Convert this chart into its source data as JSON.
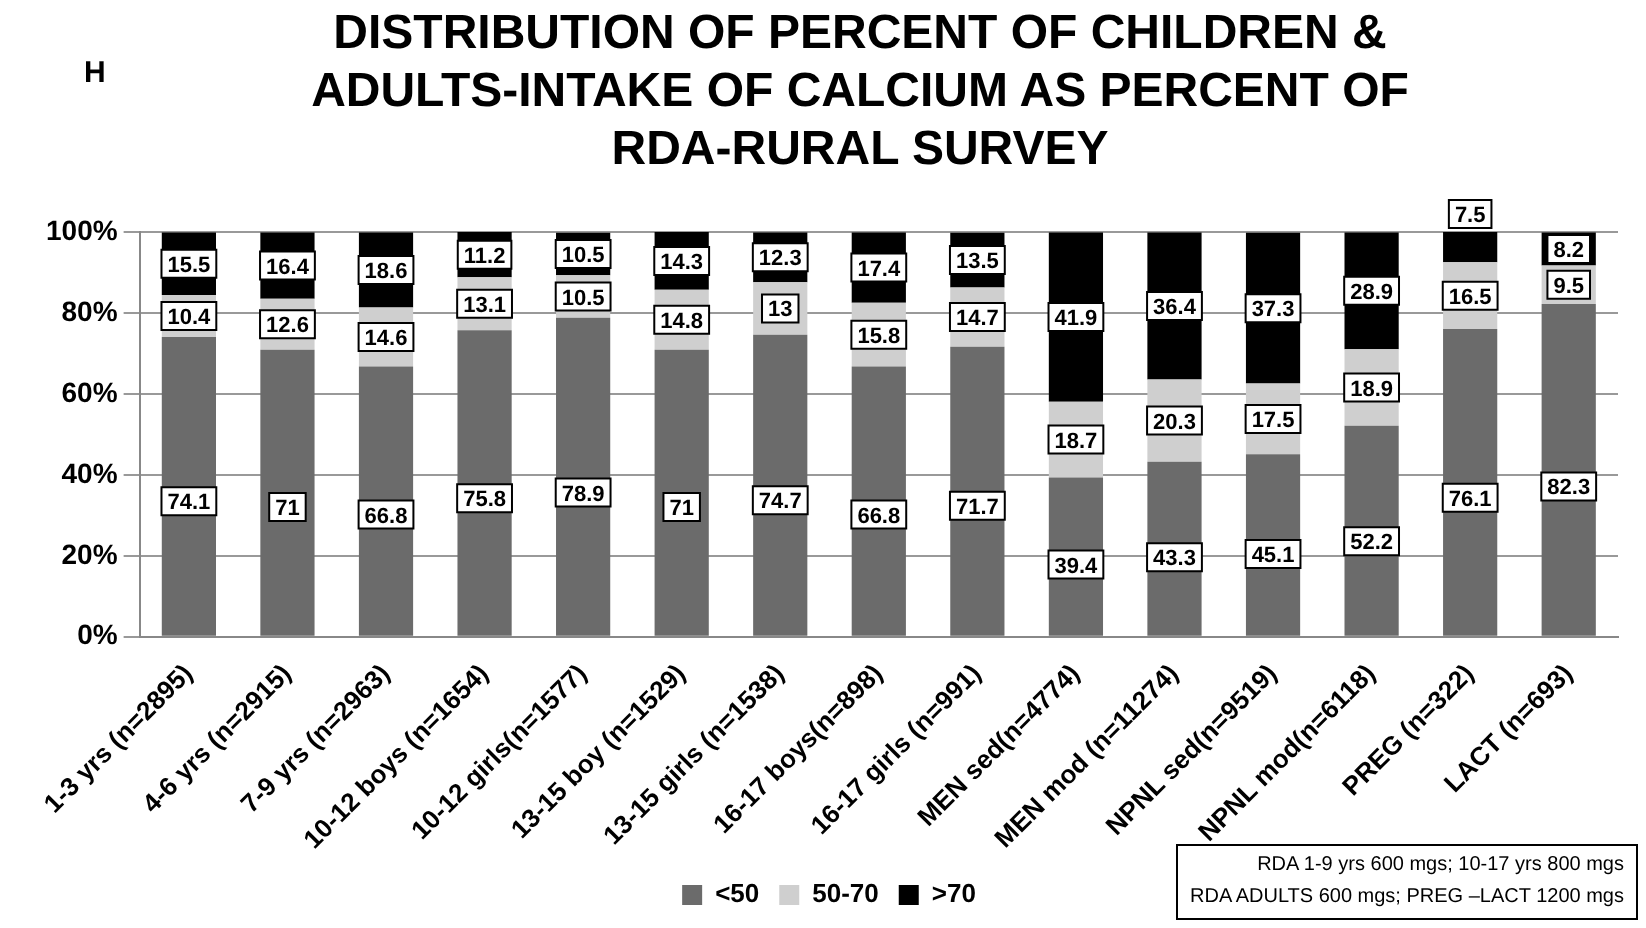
{
  "chart_data": {
    "type": "bar",
    "title": "DISTRIBUTION OF PERCENT OF CHILDREN & ADULTS-INTAKE OF CALCIUM AS PERCENT OF RDA-RURAL SURVEY",
    "annotations": [
      "H",
      "RDA 1-9 yrs 600 mgs; 10-17 yrs 800 mgs",
      "RDA ADULTS 600 mgs; PREG –LACT 1200 mgs"
    ],
    "categories": [
      "1-3 yrs (n=2895)",
      "4-6 yrs (n=2915)",
      "7-9 yrs (n=2963)",
      "10-12 boys (n=1654)",
      "10-12 girls(n=1577)",
      "13-15 boy (n=1529)",
      "13-15 girls (n=1538)",
      "16-17 boys(n=898)",
      "16-17 girls (n=991)",
      "MEN sed(n=4774)",
      "MEN mod (n=11274)",
      "NPNL sed(n=9519)",
      "NPNL mod(n=6118)",
      "PREG (n=322)",
      "LACT (n=693)"
    ],
    "series": [
      {
        "name": "<50",
        "color": "#6b6b6b",
        "values": [
          74.1,
          71,
          66.8,
          75.8,
          78.9,
          71,
          74.7,
          66.8,
          71.7,
          39.4,
          43.3,
          45.1,
          52.2,
          76.1,
          82.3
        ]
      },
      {
        "name": "50-70",
        "color": "#cfcfcf",
        "values": [
          10.4,
          12.6,
          14.6,
          13.1,
          10.5,
          14.8,
          13,
          15.8,
          14.7,
          18.7,
          20.3,
          17.5,
          18.9,
          16.5,
          9.5
        ]
      },
      {
        "name": ">70",
        "color": "#000000",
        "values": [
          15.5,
          16.4,
          18.6,
          11.2,
          10.5,
          14.3,
          12.3,
          17.4,
          13.5,
          41.9,
          36.4,
          37.3,
          28.9,
          7.5,
          8.2
        ]
      }
    ],
    "stacked": true,
    "data_labels": true,
    "ylim": [
      0,
      100.1
    ],
    "yticks": [
      {
        "value": 0,
        "label": "0%"
      },
      {
        "value": 20,
        "label": "20%"
      },
      {
        "value": 40,
        "label": "40%"
      },
      {
        "value": 60,
        "label": "60%"
      },
      {
        "value": 80,
        "label": "80%"
      },
      {
        "value": 100,
        "label": "100%"
      }
    ],
    "grid": "y",
    "legend": "bottom"
  }
}
